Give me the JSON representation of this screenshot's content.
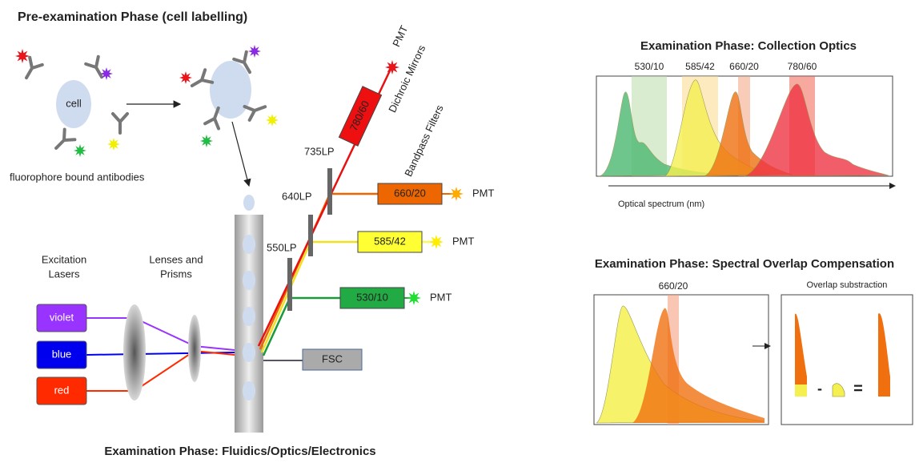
{
  "pre_examination": {
    "title": "Pre-examination Phase (cell labelling)",
    "cell": "cell",
    "caption": "fluorophore bound antibodies"
  },
  "fluidics": {
    "title": "Examination Phase: Fluidics/Optics/Electronics",
    "excitation_lasers": [
      "Excitation",
      "Lasers"
    ],
    "lenses": [
      "Lenses and",
      "Prisms"
    ],
    "lasers": [
      "violet",
      "blue",
      "red"
    ],
    "mirrors": [
      "550LP",
      "640LP",
      "735LP"
    ],
    "dichroic_label": "Dichroic Mirrors",
    "bandpass_label": "Bandpass Filters",
    "detectors": [
      {
        "filter": "530/10",
        "detector": "PMT"
      },
      {
        "filter": "585/42",
        "detector": "PMT"
      },
      {
        "filter": "660/20",
        "detector": "PMT"
      },
      {
        "filter": "780/60",
        "detector": "PMT"
      }
    ],
    "scatter": "FSC"
  },
  "collection_optics": {
    "title": "Examination Phase: Collection Optics",
    "bands": [
      "530/10",
      "585/42",
      "660/20",
      "780/60"
    ],
    "axis_label": "Optical spectrum (nm)"
  },
  "compensation": {
    "title": "Examination Phase: Spectral Overlap Compensation",
    "band": "660/20",
    "result_title": "Overlap substraction",
    "minus": "-",
    "equals": "="
  }
}
